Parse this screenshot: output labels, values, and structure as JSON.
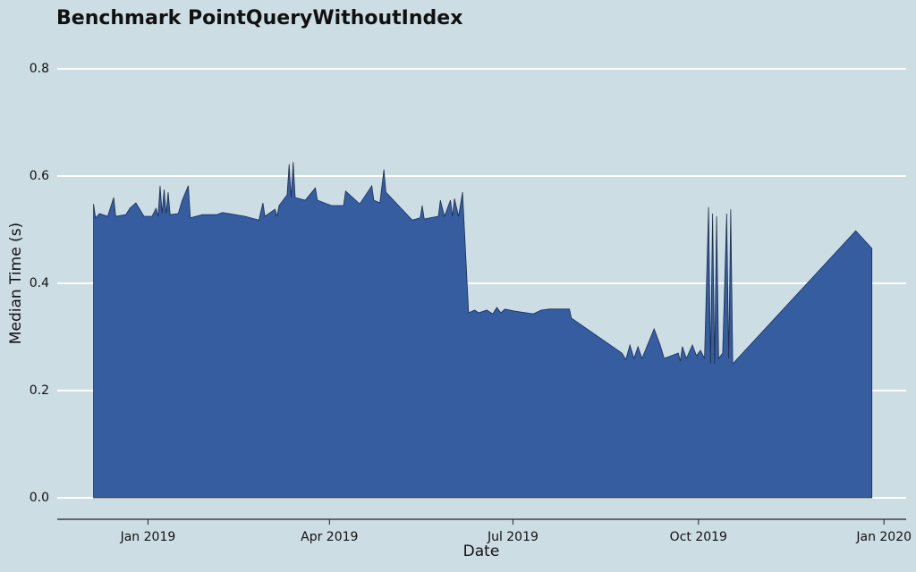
{
  "chart_data": {
    "type": "area",
    "title": "Benchmark PointQueryWithoutIndex",
    "x_label": "Date",
    "y_label": "Median Time (s)",
    "x": [
      "2018-12-05",
      "2018-12-06",
      "2018-12-08",
      "2018-12-12",
      "2018-12-15",
      "2018-12-16",
      "2018-12-21",
      "2018-12-23",
      "2018-12-26",
      "2018-12-30",
      "2019-01-03",
      "2019-01-05",
      "2019-01-06",
      "2019-01-07",
      "2019-01-08",
      "2019-01-09",
      "2019-01-10",
      "2019-01-11",
      "2019-01-12",
      "2019-01-16",
      "2019-01-18",
      "2019-01-21",
      "2019-01-22",
      "2019-01-28",
      "2019-02-04",
      "2019-02-07",
      "2019-02-18",
      "2019-02-25",
      "2019-02-27",
      "2019-02-28",
      "2019-03-05",
      "2019-03-06",
      "2019-03-07",
      "2019-03-11",
      "2019-03-12",
      "2019-03-13",
      "2019-03-14",
      "2019-03-15",
      "2019-03-20",
      "2019-03-25",
      "2019-03-26",
      "2019-04-02",
      "2019-04-08",
      "2019-04-09",
      "2019-04-16",
      "2019-04-22",
      "2019-04-23",
      "2019-04-26",
      "2019-04-28",
      "2019-04-29",
      "2019-05-12",
      "2019-05-16",
      "2019-05-17",
      "2019-05-18",
      "2019-05-25",
      "2019-05-26",
      "2019-05-28",
      "2019-05-31",
      "2019-06-01",
      "2019-06-02",
      "2019-06-04",
      "2019-06-06",
      "2019-06-09",
      "2019-06-12",
      "2019-06-14",
      "2019-06-18",
      "2019-06-21",
      "2019-06-23",
      "2019-06-25",
      "2019-06-27",
      "2019-07-02",
      "2019-07-11",
      "2019-07-15",
      "2019-07-19",
      "2019-07-29",
      "2019-07-30",
      "2019-08-24",
      "2019-08-26",
      "2019-08-28",
      "2019-08-30",
      "2019-09-01",
      "2019-09-03",
      "2019-09-09",
      "2019-09-12",
      "2019-09-14",
      "2019-09-21",
      "2019-09-22",
      "2019-09-23",
      "2019-09-25",
      "2019-09-28",
      "2019-09-30",
      "2019-10-02",
      "2019-10-04",
      "2019-10-06",
      "2019-10-07",
      "2019-10-08",
      "2019-10-09",
      "2019-10-10",
      "2019-10-11",
      "2019-10-13",
      "2019-10-15",
      "2019-10-16",
      "2019-10-17",
      "2019-10-18",
      "2019-12-18",
      "2019-12-26"
    ],
    "values": [
      0.548,
      0.522,
      0.53,
      0.525,
      0.56,
      0.525,
      0.528,
      0.54,
      0.55,
      0.525,
      0.525,
      0.54,
      0.525,
      0.582,
      0.53,
      0.575,
      0.53,
      0.57,
      0.528,
      0.53,
      0.555,
      0.582,
      0.522,
      0.528,
      0.528,
      0.532,
      0.525,
      0.518,
      0.55,
      0.525,
      0.538,
      0.525,
      0.545,
      0.565,
      0.622,
      0.56,
      0.626,
      0.56,
      0.555,
      0.578,
      0.555,
      0.545,
      0.545,
      0.572,
      0.548,
      0.582,
      0.555,
      0.55,
      0.612,
      0.57,
      0.518,
      0.522,
      0.545,
      0.52,
      0.525,
      0.555,
      0.525,
      0.555,
      0.525,
      0.558,
      0.525,
      0.57,
      0.345,
      0.35,
      0.345,
      0.35,
      0.343,
      0.355,
      0.345,
      0.352,
      0.348,
      0.343,
      0.35,
      0.352,
      0.352,
      0.335,
      0.27,
      0.258,
      0.285,
      0.26,
      0.282,
      0.26,
      0.315,
      0.285,
      0.26,
      0.27,
      0.255,
      0.282,
      0.26,
      0.285,
      0.265,
      0.275,
      0.26,
      0.542,
      0.25,
      0.53,
      0.25,
      0.525,
      0.26,
      0.27,
      0.53,
      0.26,
      0.538,
      0.25,
      0.498,
      0.465
    ],
    "color": "#355d9f",
    "xlim": [
      "2018-11-17",
      "2020-01-12"
    ],
    "xticks": [
      {
        "value": "2019-01-01",
        "label": "Jan 2019"
      },
      {
        "value": "2019-04-01",
        "label": "Apr 2019"
      },
      {
        "value": "2019-07-01",
        "label": "Jul 2019"
      },
      {
        "value": "2019-10-01",
        "label": "Oct 2019"
      },
      {
        "value": "2020-01-01",
        "label": "Jan 2020"
      }
    ],
    "ylim": [
      -0.04,
      0.8
    ],
    "yticks": [
      {
        "value": 0,
        "label": "0.0"
      },
      0.2,
      0.4,
      0.6,
      0.8
    ],
    "grid": true
  }
}
